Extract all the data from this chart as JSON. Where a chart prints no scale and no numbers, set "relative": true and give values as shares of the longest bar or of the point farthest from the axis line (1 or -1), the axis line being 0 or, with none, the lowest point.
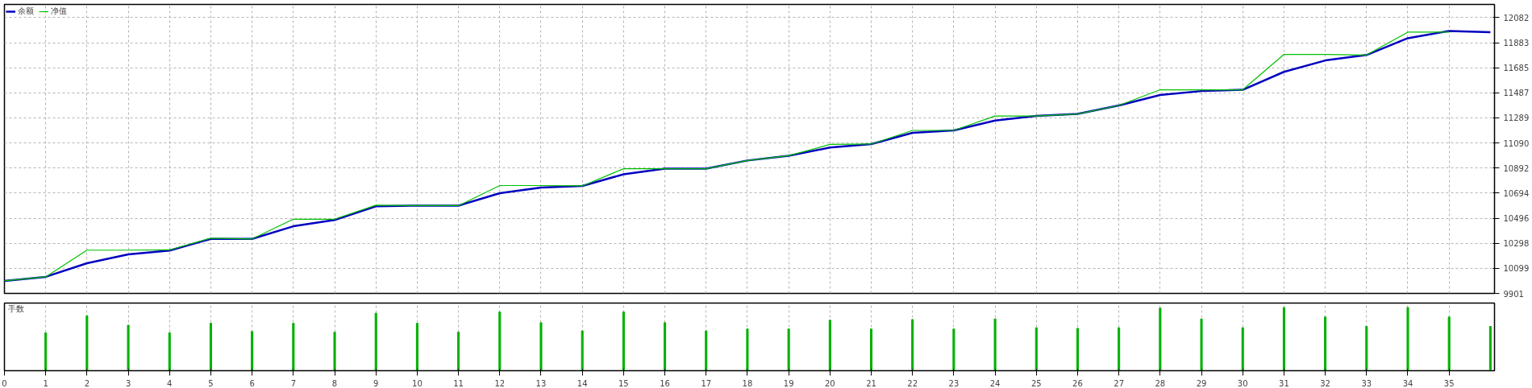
{
  "chart_data": [
    {
      "type": "line",
      "x": [
        0,
        1,
        2,
        3,
        4,
        5,
        6,
        7,
        8,
        9,
        10,
        11,
        12,
        13,
        14,
        15,
        16,
        17,
        18,
        19,
        20,
        21,
        22,
        23,
        24,
        25,
        26,
        27,
        28,
        29,
        30,
        31,
        32,
        33,
        34,
        35,
        36
      ],
      "series": [
        {
          "name": "余额",
          "color": "#0000c0",
          "values": [
            10000,
            10032,
            10140,
            10210,
            10240,
            10332,
            10332,
            10432,
            10482,
            10590,
            10595,
            10595,
            10693,
            10738,
            10751,
            10843,
            10887,
            10887,
            10952,
            10990,
            11054,
            11082,
            11171,
            11190,
            11268,
            11304,
            11320,
            11387,
            11470,
            11501,
            11511,
            11653,
            11743,
            11786,
            11919,
            11976,
            11967
          ]
        },
        {
          "name": "净值",
          "color": "#00c000",
          "values": [
            10000,
            10032,
            10243,
            10243,
            10245,
            10338,
            10332,
            10488,
            10488,
            10599,
            10595,
            10595,
            10754,
            10754,
            10751,
            10887,
            10887,
            10887,
            10952,
            10990,
            11079,
            11082,
            11190,
            11190,
            11304,
            11304,
            11320,
            11387,
            11511,
            11511,
            11511,
            11791,
            11791,
            11786,
            11967,
            11967,
            null
          ]
        }
      ],
      "xlim": [
        0,
        36.1
      ],
      "ylim": [
        9901,
        12186
      ],
      "yticks": [
        9901,
        10099,
        10298,
        10496,
        10694,
        10892,
        11090,
        11289,
        11487,
        11685,
        11883,
        12082
      ],
      "xticks": [
        0,
        1,
        2,
        3,
        4,
        5,
        6,
        7,
        8,
        9,
        10,
        11,
        12,
        13,
        14,
        15,
        16,
        17,
        18,
        19,
        20,
        21,
        22,
        23,
        24,
        25,
        26,
        27,
        28,
        29,
        30,
        31,
        32,
        33,
        34,
        35
      ],
      "tick_labels": "y",
      "grid": true,
      "legend": "top left"
    },
    {
      "type": "bar",
      "title": "手数",
      "relative": true,
      "color": "#00b000",
      "x": [
        1,
        2,
        3,
        4,
        5,
        6,
        7,
        8,
        9,
        10,
        11,
        12,
        13,
        14,
        15,
        16,
        17,
        18,
        19,
        20,
        21,
        22,
        23,
        24,
        25,
        26,
        27,
        28,
        29,
        30,
        31,
        32,
        33,
        34,
        35,
        36
      ],
      "values": [
        0.6,
        0.87,
        0.72,
        0.6,
        0.75,
        0.62,
        0.75,
        0.61,
        0.91,
        0.75,
        0.61,
        0.93,
        0.76,
        0.63,
        0.93,
        0.76,
        0.63,
        0.66,
        0.66,
        0.8,
        0.66,
        0.81,
        0.66,
        0.82,
        0.68,
        0.67,
        0.68,
        0.99,
        0.82,
        0.68,
        1,
        0.85,
        0.7,
        1,
        0.85,
        0.7
      ],
      "xlim": [
        0,
        36.1
      ],
      "xticks": [
        0,
        1,
        2,
        3,
        4,
        5,
        6,
        7,
        8,
        9,
        10,
        11,
        12,
        13,
        14,
        15,
        16,
        17,
        18,
        19,
        20,
        21,
        22,
        23,
        24,
        25,
        26,
        27,
        28,
        29,
        30,
        31,
        32,
        33,
        34,
        35
      ],
      "tick_labels": "x",
      "grid": "x"
    }
  ]
}
